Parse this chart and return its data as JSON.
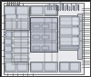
{
  "bg": "#f4f4f4",
  "chip_fill": "#e8eaee",
  "block_fill": "#d0d4dc",
  "block_dark": "#b8bcc8",
  "block_light": "#dce0e8",
  "edge_dark": "#404850",
  "edge_mid": "#606870",
  "line_col": "#404040",
  "white": "#ffffff",
  "figsize": [
    1.0,
    0.85
  ],
  "dpi": 100,
  "xlim": [
    0,
    100
  ],
  "ylim": [
    0,
    85
  ]
}
